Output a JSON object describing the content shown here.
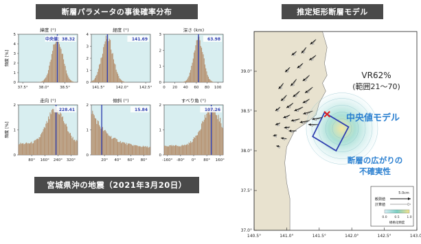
{
  "left_title": "断層パラメータの事後確率分布",
  "right_title": "推定矩形断層モデル",
  "caption": "宮城県沖の地震（2021年3月20日）",
  "colors": {
    "banner": "#4a4a4a",
    "panel_bg": "#d8eef0",
    "bar": "#b5906e",
    "median_line": "#2f3fb0",
    "label_blue": "#2a7fd0",
    "fault": "#2f3fb0",
    "land": "#e8e2cf",
    "sea": "#ffffff",
    "epicenter": "#e02020"
  },
  "histogram_ylabel": "頻度 [%]",
  "median_prefix": "中央値：",
  "chart_data": [
    {
      "type": "bar",
      "panel": "lat",
      "title": "緯度 (°)",
      "median": 38.32,
      "median_label": "38.32",
      "show_prefix": true,
      "xlim": [
        37.4,
        38.8
      ],
      "ylim": [
        0,
        5
      ],
      "xticks": [
        37.5,
        38.0,
        38.5
      ],
      "xtick_labels": [
        "37.5°",
        "38.0°",
        "38.5°"
      ],
      "yticks": [
        0,
        1,
        2,
        3,
        4,
        5
      ],
      "shape": {
        "kind": "peak",
        "center": 38.32,
        "width": 0.13,
        "base": 0.0
      }
    },
    {
      "type": "bar",
      "panel": "lon",
      "title": "経度 (°)",
      "median": 141.69,
      "median_label": "141.69",
      "show_prefix": false,
      "xlim": [
        141.35,
        142.6
      ],
      "ylim": [
        0,
        4
      ],
      "xticks": [
        141.5,
        142.0,
        142.5
      ],
      "xtick_labels": [
        "141.5°",
        "142.0°",
        "142.5°"
      ],
      "yticks": [
        0,
        1,
        2,
        3,
        4
      ],
      "shape": {
        "kind": "peak",
        "center": 141.69,
        "width": 0.12,
        "base": 0.0
      }
    },
    {
      "type": "bar",
      "panel": "depth",
      "title": "深さ (km)",
      "median": 63.98,
      "median_label": "63.98",
      "show_prefix": false,
      "xlim": [
        0,
        110
      ],
      "ylim": [
        0,
        3
      ],
      "xticks": [
        0,
        20,
        40,
        60,
        80,
        100
      ],
      "xtick_labels": [
        "0",
        "20",
        "40",
        "60",
        "80",
        "100"
      ],
      "yticks": [
        0,
        1,
        2,
        3
      ],
      "shape": {
        "kind": "peak",
        "center": 64,
        "width": 9,
        "base": 0.0
      }
    },
    {
      "type": "bar",
      "panel": "strike",
      "title": "走向 (°)",
      "median": 228.41,
      "median_label": "228.41",
      "show_prefix": false,
      "xlim": [
        0,
        360
      ],
      "ylim": [
        0,
        2
      ],
      "xticks": [
        80,
        160,
        240,
        320
      ],
      "xtick_labels": [
        "80°",
        "160°",
        "240°",
        "320°"
      ],
      "yticks": [
        0,
        1,
        2
      ],
      "shape": {
        "kind": "broad",
        "center": 228,
        "width": 55,
        "base": 0.25
      }
    },
    {
      "type": "bar",
      "panel": "dip",
      "title": "傾斜 (°)",
      "median": 15.84,
      "median_label": "15.84",
      "show_prefix": false,
      "xlim": [
        0,
        90
      ],
      "ylim": [
        0,
        2
      ],
      "xticks": [
        20,
        40,
        60,
        80
      ],
      "xtick_labels": [
        "20°",
        "40°",
        "60°",
        "80°"
      ],
      "yticks": [
        0,
        1,
        2
      ],
      "shape": {
        "kind": "decay",
        "center": 0,
        "width": 25,
        "base": 0.15
      }
    },
    {
      "type": "bar",
      "panel": "rake",
      "title": "すべり角 (°)",
      "median": 107.26,
      "median_label": "107.26",
      "show_prefix": false,
      "xlim": [
        -180,
        180
      ],
      "ylim": [
        0,
        2
      ],
      "xticks": [
        -160,
        -80,
        0,
        80,
        160
      ],
      "xtick_labels": [
        "-160°",
        "-80°",
        "0°",
        "80°",
        "160°"
      ],
      "yticks": [
        0,
        1,
        2
      ],
      "shape": {
        "kind": "rise",
        "center": 110,
        "width": 60,
        "base": 0.2
      }
    },
    {
      "type": "scatter",
      "panel": "map",
      "title": "",
      "xlim": [
        140.5,
        143.0
      ],
      "ylim": [
        37.0,
        39.5
      ],
      "xticks": [
        140.5,
        141.0,
        141.5,
        142.0,
        142.5,
        143.0
      ],
      "xtick_labels": [
        "140.5°",
        "141.0°",
        "141.5°",
        "142.0°",
        "142.5°",
        "143.0°"
      ],
      "yticks": [
        37.0,
        37.5,
        38.0,
        38.5,
        39.0
      ],
      "ytick_labels": [
        "37.0°",
        "37.5°",
        "38.0°",
        "38.5°",
        "39.0°"
      ],
      "vr_text": "VR62%",
      "vr_range": "(範囲21～70)",
      "median_model_label": "中央値モデル",
      "uncertainty_label_1": "断層の広がりの",
      "uncertainty_label_2": "不確実性",
      "legend_scale": "5.0cm",
      "legend_observed": "観測値",
      "legend_calculated": "計算値",
      "colorbar_ticks": [
        "0.0",
        "0.5",
        "1.0"
      ],
      "colorbar_label": "規格化頻度",
      "epicenter": [
        141.62,
        38.46
      ],
      "fault_polygon": [
        [
          141.58,
          38.48
        ],
        [
          141.95,
          38.3
        ],
        [
          141.76,
          38.0
        ],
        [
          141.4,
          38.18
        ]
      ]
    }
  ]
}
